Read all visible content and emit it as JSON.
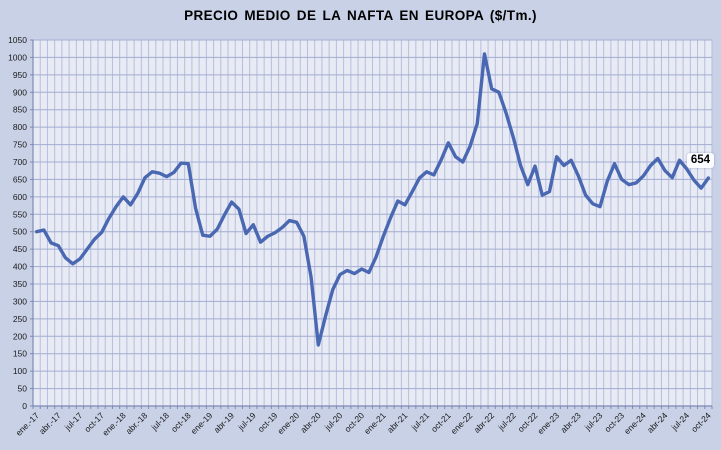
{
  "chart_data": {
    "type": "line",
    "title": "PRECIO MEDIO DE LA NAFTA EN EUROPA ($/Tm.)",
    "xlabel": "",
    "ylabel": "",
    "ylim": [
      0,
      1050
    ],
    "y_tick_step": 50,
    "y_ticks": [
      0,
      50,
      100,
      150,
      200,
      250,
      300,
      350,
      400,
      450,
      500,
      550,
      600,
      650,
      700,
      750,
      800,
      850,
      900,
      950,
      1000,
      1050
    ],
    "grid": true,
    "legend": false,
    "x_tick_every": 3,
    "x_tick_labels": [
      "ene.-17",
      "abr.-17",
      "jul-17",
      "oct-17",
      "ene.-18",
      "abr.-18",
      "jul-18",
      "oct-18",
      "ene-19",
      "abr-19",
      "jul-19",
      "oct-19",
      "ene-20",
      "abr-20",
      "jul-20",
      "oct-20",
      "ene-21",
      "abr-21",
      "jul-21",
      "oct-21",
      "ene-22",
      "abr-22",
      "jul-22",
      "oct-22",
      "ene-23",
      "abr-23",
      "jul-23",
      "oct-23",
      "ene-24",
      "abr-24",
      "jul-24",
      "oct-24"
    ],
    "series": [
      {
        "name": "Precio medio de la nafta en Europa ($/Tm.)",
        "start_month": "ene-17",
        "end_month": "oct-24",
        "values": [
          500,
          505,
          468,
          460,
          425,
          408,
          422,
          450,
          478,
          498,
          538,
          572,
          600,
          577,
          610,
          655,
          672,
          668,
          658,
          670,
          697,
          695,
          568,
          490,
          487,
          507,
          548,
          585,
          565,
          495,
          520,
          470,
          487,
          497,
          512,
          532,
          527,
          487,
          369,
          175,
          258,
          334,
          377,
          389,
          380,
          393,
          383,
          428,
          487,
          540,
          588,
          577,
          615,
          654,
          672,
          663,
          706,
          755,
          715,
          700,
          745,
          810,
          1010,
          910,
          900,
          840,
          770,
          690,
          635,
          688,
          605,
          615,
          715,
          690,
          705,
          660,
          605,
          580,
          572,
          645,
          695,
          650,
          635,
          640,
          660,
          690,
          710,
          675,
          655,
          705,
          680,
          648,
          625,
          654
        ]
      }
    ],
    "end_label": {
      "text": "654",
      "value": 654
    },
    "colors": {
      "line": "#4a68b2",
      "plot_bg": "#e8eaf4",
      "outer_bg": "#c9d1e7",
      "grid_h": "#a2add2",
      "grid_v": "#b5bfde",
      "axis": "#7d8bb5",
      "title": "#000000",
      "tick_text": "#1a1a1a",
      "label_bg": "#fbfcff"
    }
  }
}
